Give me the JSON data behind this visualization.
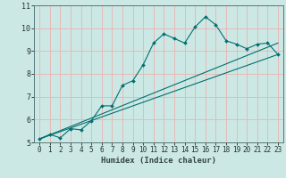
{
  "xlabel": "Humidex (Indice chaleur)",
  "bg_color": "#cce8e4",
  "grid_color": "#e8b8b8",
  "line_color": "#007070",
  "spine_color": "#557777",
  "xlim": [
    -0.5,
    23.5
  ],
  "ylim": [
    5,
    11
  ],
  "xticks": [
    0,
    1,
    2,
    3,
    4,
    5,
    6,
    7,
    8,
    9,
    10,
    11,
    12,
    13,
    14,
    15,
    16,
    17,
    18,
    19,
    20,
    21,
    22,
    23
  ],
  "yticks": [
    5,
    6,
    7,
    8,
    9,
    10,
    11
  ],
  "series1_x": [
    0,
    1,
    2,
    3,
    4,
    5,
    6,
    7,
    8,
    9,
    10,
    11,
    12,
    13,
    14,
    15,
    16,
    17,
    18,
    19,
    20,
    21,
    22,
    23
  ],
  "series1_y": [
    5.15,
    5.35,
    5.2,
    5.6,
    5.55,
    5.95,
    6.6,
    6.6,
    7.5,
    7.7,
    8.4,
    9.35,
    9.75,
    9.55,
    9.35,
    10.05,
    10.5,
    10.15,
    9.45,
    9.3,
    9.1,
    9.3,
    9.35,
    8.85
  ],
  "series2_x": [
    0,
    23
  ],
  "series2_y": [
    5.15,
    8.85
  ],
  "series3_x": [
    0,
    23
  ],
  "series3_y": [
    5.15,
    9.35
  ],
  "xlabel_fontsize": 6.5,
  "tick_fontsize": 5.5
}
